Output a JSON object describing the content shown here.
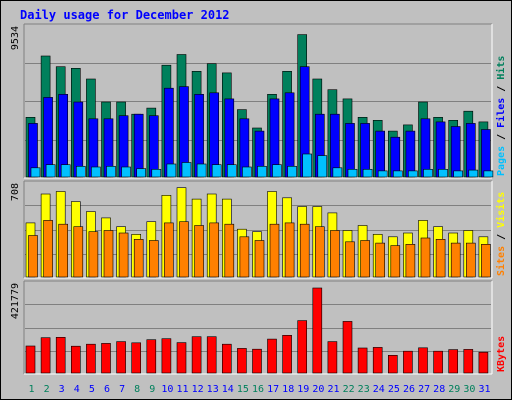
{
  "chart_data": {
    "type": "bar",
    "title": "Daily usage for December 2012",
    "colors": {
      "background": "#c0c0c0",
      "title": "#0000ff",
      "hits": "#00805c",
      "files": "#0000ff",
      "pages": "#00c0ff",
      "visits": "#ffff00",
      "sites": "#ff8000",
      "kbytes": "#ff0000",
      "weekend_day": "#00805c",
      "weekday": "#0000ff"
    },
    "categories": [
      "1",
      "2",
      "3",
      "4",
      "5",
      "6",
      "7",
      "8",
      "9",
      "10",
      "11",
      "12",
      "13",
      "14",
      "15",
      "16",
      "17",
      "18",
      "19",
      "20",
      "21",
      "22",
      "23",
      "24",
      "25",
      "26",
      "27",
      "28",
      "29",
      "30",
      "31"
    ],
    "weekend_days": [
      "1",
      "2",
      "8",
      "9",
      "15",
      "16",
      "22",
      "23",
      "29",
      "30"
    ],
    "panels": [
      {
        "id": "hits-files-pages",
        "ymax_label": "9534",
        "ylim": [
          0,
          9534
        ],
        "legend": [
          {
            "text": "Pages",
            "color": "#00c0ff"
          },
          {
            "text": " / ",
            "color": "#000000"
          },
          {
            "text": "Files",
            "color": "#0000ff"
          },
          {
            "text": " / ",
            "color": "#000000"
          },
          {
            "text": "Hits",
            "color": "#00805c"
          }
        ],
        "series": [
          {
            "name": "Hits",
            "color": "#00805c",
            "values": [
              3900,
              7900,
              7200,
              7100,
              6400,
              4900,
              4900,
              4100,
              4500,
              7300,
              8000,
              6900,
              7400,
              6800,
              4400,
              3200,
              5400,
              6900,
              9300,
              6400,
              5700,
              5100,
              3900,
              3700,
              3000,
              3400,
              4900,
              3900,
              3700,
              4300,
              3600
            ]
          },
          {
            "name": "Files",
            "color": "#0000ff",
            "values": [
              3500,
              5200,
              5400,
              4900,
              3800,
              3800,
              4000,
              4100,
              4000,
              5800,
              5900,
              5400,
              5500,
              5100,
              3800,
              3000,
              5100,
              5500,
              7200,
              4100,
              4100,
              3500,
              3500,
              3000,
              2600,
              3000,
              3800,
              3600,
              3300,
              3500,
              3100
            ]
          },
          {
            "name": "Pages",
            "color": "#00c0ff",
            "values": [
              600,
              800,
              800,
              700,
              650,
              700,
              650,
              550,
              500,
              850,
              950,
              850,
              800,
              800,
              650,
              700,
              800,
              700,
              1500,
              1400,
              600,
              500,
              500,
              400,
              400,
              400,
              500,
              500,
              400,
              450,
              400
            ]
          }
        ]
      },
      {
        "id": "visits-sites",
        "ymax_label": "708",
        "ylim": [
          0,
          708
        ],
        "legend": [
          {
            "text": "Sites",
            "color": "#ff8000"
          },
          {
            "text": " / ",
            "color": "#000000"
          },
          {
            "text": "Visits",
            "color": "#ffff00"
          }
        ],
        "series": [
          {
            "name": "Visits",
            "color": "#ffff00",
            "values": [
              430,
              660,
              680,
              600,
              520,
              470,
              400,
              340,
              440,
              650,
              710,
              620,
              660,
              620,
              380,
              360,
              680,
              630,
              560,
              560,
              510,
              370,
              410,
              340,
              320,
              350,
              450,
              400,
              350,
              370,
              320
            ]
          },
          {
            "name": "Sites",
            "color": "#ff8000",
            "values": [
              330,
              450,
              420,
              400,
              360,
              370,
              350,
              300,
              290,
              430,
              440,
              410,
              430,
              420,
              320,
              290,
              420,
              430,
              420,
              400,
              370,
              280,
              290,
              270,
              250,
              260,
              310,
              300,
              270,
              270,
              260
            ]
          }
        ]
      },
      {
        "id": "kbytes",
        "ymax_label": "421779",
        "ylim": [
          0,
          421779
        ],
        "legend": [
          {
            "text": "KBytes",
            "color": "#ff0000"
          }
        ],
        "series": [
          {
            "name": "KBytes",
            "color": "#ff0000",
            "values": [
              134000,
              175000,
              177000,
              133000,
              143000,
              147000,
              156000,
              150000,
              165000,
              170000,
              151000,
              180000,
              180000,
              143000,
              122000,
              118000,
              168000,
              187000,
              260000,
              421779,
              156000,
              256000,
              124000,
              127000,
              88000,
              108000,
              125000,
              108000,
              116000,
              117000,
              103000
            ]
          }
        ]
      }
    ]
  }
}
